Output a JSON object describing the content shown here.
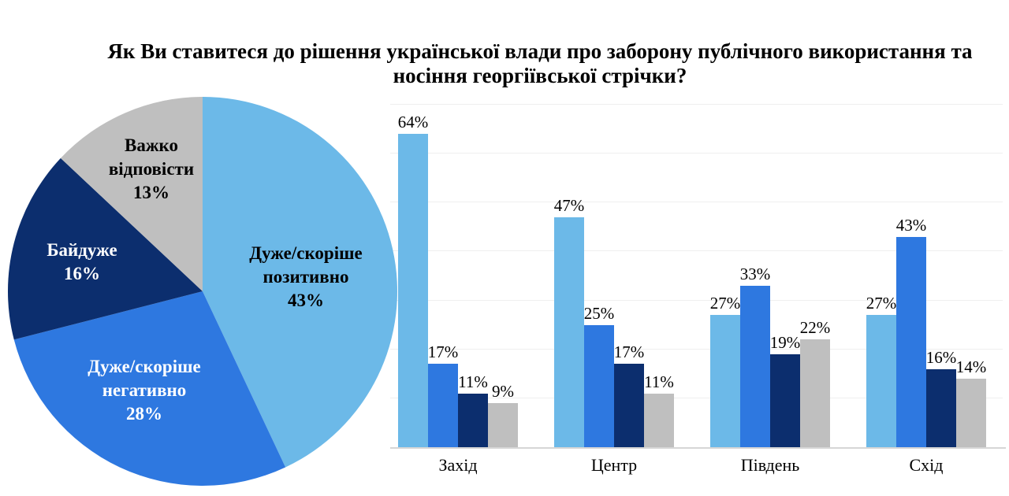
{
  "title": "Як Ви ставитеся до рішення української влади про заборону публічного використання та носіння георгіївської стрічки?",
  "colors": {
    "background": "#FFFFFF",
    "positive": "#6CB9E8",
    "negative": "#2E78E0",
    "indifferent": "#0C2E6E",
    "hard_to_say": "#BFBFBF",
    "gridline": "#EFEFEF",
    "axis_line": "#D6D6D6"
  },
  "chart_data": [
    {
      "type": "pie",
      "unit": "%",
      "start_angle": "12-oclock",
      "direction": "clockwise",
      "slices": [
        {
          "label": "Дуже/скоріше позитивно",
          "value": 43,
          "color": "#6CB9E8",
          "label_color": "#000000"
        },
        {
          "label": "Дуже/скоріше негативно",
          "value": 28,
          "color": "#2E78E0",
          "label_color": "#FFFFFF"
        },
        {
          "label": "Байдуже",
          "value": 16,
          "color": "#0C2E6E",
          "label_color": "#FFFFFF"
        },
        {
          "label": "Важко відповісти",
          "value": 13,
          "color": "#BFBFBF",
          "label_color": "#000000"
        }
      ]
    },
    {
      "type": "bar",
      "categories": [
        "Захід",
        "Центр",
        "Південь",
        "Схід"
      ],
      "series": [
        {
          "name": "Дуже/скоріше позитивно",
          "color": "#6CB9E8",
          "values": [
            64,
            47,
            27,
            27
          ]
        },
        {
          "name": "Дуже/скоріше негативно",
          "color": "#2E78E0",
          "values": [
            17,
            25,
            33,
            43
          ]
        },
        {
          "name": "Байдуже",
          "color": "#0C2E6E",
          "values": [
            11,
            17,
            19,
            16
          ]
        },
        {
          "name": "Важко відповісти",
          "color": "#BFBFBF",
          "values": [
            9,
            11,
            22,
            14
          ]
        }
      ],
      "value_suffix": "%",
      "ylim": [
        0,
        70
      ],
      "grid_step": 10,
      "grid": true,
      "legend": "none",
      "ylabel": "",
      "xlabel": ""
    }
  ]
}
